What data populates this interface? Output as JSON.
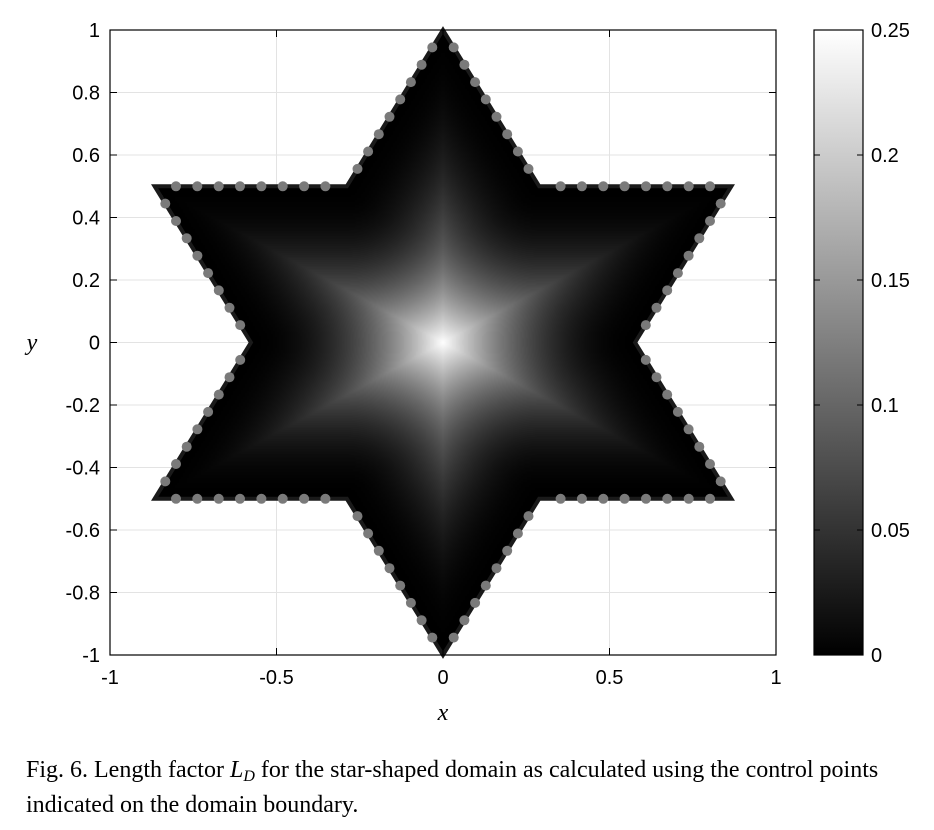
{
  "chart_data": {
    "type": "heatmap",
    "title": "",
    "xlabel": "x",
    "ylabel": "y",
    "xlim": [
      -1,
      1
    ],
    "ylim": [
      -1,
      1
    ],
    "x_ticks": [
      "-1",
      "-0.5",
      "0",
      "0.5",
      "1"
    ],
    "y_ticks": [
      "1",
      "0.8",
      "0.6",
      "0.4",
      "0.2",
      "0",
      "-0.2",
      "-0.4",
      "-0.6",
      "-0.8",
      "-1"
    ],
    "grid": true,
    "colormap": "gray",
    "colorbar": {
      "range": [
        0,
        0.25
      ],
      "ticks": [
        "0.25",
        "0.2",
        "0.15",
        "0.1",
        "0.05",
        "0"
      ]
    },
    "domain": {
      "shape": "six-pointed star",
      "outer_vertices": [
        [
          0,
          1
        ],
        [
          0.866,
          0.5
        ],
        [
          0.866,
          -0.5
        ],
        [
          0,
          -1
        ],
        [
          -0.866,
          -0.5
        ],
        [
          -0.866,
          0.5
        ]
      ],
      "inner_vertices": [
        [
          0.289,
          0.5
        ],
        [
          0.577,
          0
        ],
        [
          0.289,
          -0.5
        ],
        [
          -0.289,
          -0.5
        ],
        [
          -0.577,
          0
        ],
        [
          -0.289,
          0.5
        ]
      ]
    },
    "field": {
      "peak_value": 0.25,
      "peak_location": [
        0,
        0
      ],
      "boundary_value": 0
    },
    "control_points": {
      "points_per_edge": 8,
      "edges": 12,
      "color": "#7a7a7a"
    }
  },
  "caption": {
    "prefix": "Fig. 6.  Length factor ",
    "symbol": "L",
    "subscript": "D",
    "suffix": " for the star-shaped domain as calculated using the control points indicated on the domain boundary."
  }
}
